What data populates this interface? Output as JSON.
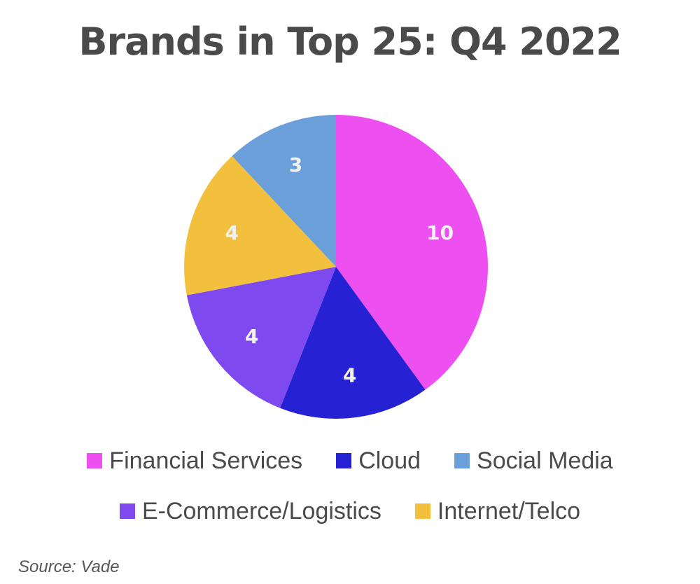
{
  "chart_data": {
    "type": "pie",
    "title": "Brands in Top 25: Q4 2022",
    "slices": [
      {
        "name": "Financial Services",
        "value": 10,
        "label": "10",
        "color": "#ee4ff0"
      },
      {
        "name": "Cloud",
        "value": 4,
        "label": "4",
        "color": "#2621d3"
      },
      {
        "name": "E-Commerce/Logistics",
        "value": 4,
        "label": "4",
        "color": "#7e4af0"
      },
      {
        "name": "Internet/Telco",
        "value": 4,
        "label": "4",
        "color": "#f2c03d"
      },
      {
        "name": "Social Media",
        "value": 3,
        "label": "3",
        "color": "#6b9fd9"
      }
    ],
    "legend_placement": "bottom",
    "legend_rows": [
      [
        "Financial Services",
        "Cloud",
        "Social Media"
      ],
      [
        "E-Commerce/Logistics",
        "Internet/Telco"
      ]
    ]
  },
  "source": "Source: Vade"
}
